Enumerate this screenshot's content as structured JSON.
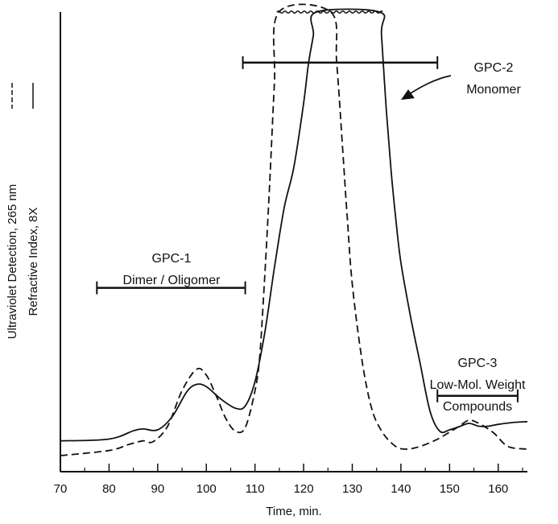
{
  "chart_data": {
    "type": "line",
    "xlabel": "Time, min.",
    "ylabel_lines": [
      "Ultraviolet Detection, 265 nm",
      "Refractive Index, 8X"
    ],
    "xlim": [
      70,
      166
    ],
    "ylim": [
      0,
      100
    ],
    "x_ticks": [
      70,
      80,
      90,
      100,
      110,
      120,
      130,
      140,
      150,
      160
    ],
    "x_minor_ticks": [
      75,
      85,
      95,
      105,
      115,
      125,
      135,
      145,
      155,
      165
    ],
    "series": [
      {
        "name": "Refractive Index, 8X",
        "style": "solid",
        "points": [
          [
            70,
            6.7
          ],
          [
            80,
            7.1
          ],
          [
            85,
            8.9
          ],
          [
            87,
            9.3
          ],
          [
            90,
            9.1
          ],
          [
            93,
            12
          ],
          [
            96,
            17.4
          ],
          [
            98,
            19
          ],
          [
            100,
            18.5
          ],
          [
            103,
            15.8
          ],
          [
            106,
            13.8
          ],
          [
            108,
            14.3
          ],
          [
            110,
            19.6
          ],
          [
            112,
            30.2
          ],
          [
            114,
            44.4
          ],
          [
            116,
            57.4
          ],
          [
            118,
            66.3
          ],
          [
            120,
            80.2
          ],
          [
            121,
            88.8
          ],
          [
            122,
            95
          ],
          [
            122.6,
            100
          ],
          [
            135.6,
            100
          ],
          [
            136,
            95
          ],
          [
            137,
            78.6
          ],
          [
            138,
            65.3
          ],
          [
            139,
            54.4
          ],
          [
            140,
            45.5
          ],
          [
            142,
            33.6
          ],
          [
            144,
            23.3
          ],
          [
            146,
            13.1
          ],
          [
            148,
            8.8
          ],
          [
            150,
            9.1
          ],
          [
            152,
            9.8
          ],
          [
            154,
            10.5
          ],
          [
            156,
            9.9
          ],
          [
            158,
            9.9
          ],
          [
            160,
            10.3
          ],
          [
            163,
            10.7
          ],
          [
            166,
            10.9
          ]
        ]
      },
      {
        "name": "Ultraviolet Detection, 265 nm",
        "style": "dashed",
        "points": [
          [
            70,
            3.5
          ],
          [
            80,
            4.6
          ],
          [
            84,
            5.9
          ],
          [
            87,
            6.7
          ],
          [
            89,
            6.5
          ],
          [
            92,
            9.8
          ],
          [
            95,
            17.6
          ],
          [
            98,
            22.3
          ],
          [
            100,
            21
          ],
          [
            102,
            16.6
          ],
          [
            104,
            11.6
          ],
          [
            106,
            8.8
          ],
          [
            108,
            9.6
          ],
          [
            110,
            17.6
          ],
          [
            111,
            25.4
          ],
          [
            112,
            42.5
          ],
          [
            113,
            62.2
          ],
          [
            114,
            84.5
          ],
          [
            114.9,
            100
          ],
          [
            125.6,
            100
          ],
          [
            126.8,
            88.8
          ],
          [
            128,
            70.6
          ],
          [
            129,
            54.8
          ],
          [
            130,
            40.8
          ],
          [
            132,
            24.2
          ],
          [
            134,
            13.7
          ],
          [
            136,
            8.9
          ],
          [
            138,
            6.3
          ],
          [
            140,
            5
          ],
          [
            143,
            5.2
          ],
          [
            147,
            6.8
          ],
          [
            150,
            8.6
          ],
          [
            152,
            9.9
          ],
          [
            154,
            11.2
          ],
          [
            156,
            10.5
          ],
          [
            159,
            8.5
          ],
          [
            162,
            5.5
          ],
          [
            166,
            4.9
          ]
        ]
      }
    ],
    "ranges": [
      {
        "label_lines": [
          "GPC-1",
          "Dimer / Oligomer"
        ],
        "from": 77.5,
        "to": 108,
        "level": 40
      },
      {
        "label_lines": [
          "GPC-2",
          "Monomer"
        ],
        "from": 107.5,
        "to": 147.5,
        "level": 89
      },
      {
        "label_lines": [
          "GPC-3",
          "Low-Mol. Weight",
          "Compounds"
        ],
        "from": 147.5,
        "to": 164,
        "level": 16.5
      }
    ],
    "flat_top_level": 100
  }
}
